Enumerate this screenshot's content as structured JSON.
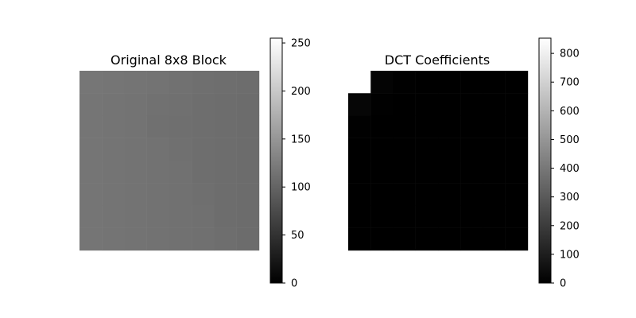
{
  "chart_data": [
    {
      "type": "heatmap",
      "title": "Original 8x8 Block",
      "xlabel": "",
      "ylabel": "",
      "axis": "off",
      "grid": false,
      "colormap": "gray",
      "vmin": 0,
      "vmax": 255,
      "values": [
        [
          118,
          117,
          116,
          115,
          113,
          111,
          110,
          109
        ],
        [
          117,
          116,
          115,
          113,
          112,
          110,
          109,
          108
        ],
        [
          117,
          116,
          115,
          112,
          111,
          110,
          109,
          108
        ],
        [
          117,
          116,
          115,
          114,
          112,
          110,
          109,
          108
        ],
        [
          117,
          116,
          115,
          114,
          113,
          110,
          109,
          108
        ],
        [
          117,
          116,
          115,
          114,
          113,
          111,
          109,
          108
        ],
        [
          117,
          116,
          115,
          114,
          113,
          112,
          109,
          108
        ],
        [
          117,
          116,
          115,
          114,
          113,
          112,
          110,
          108
        ]
      ],
      "colorbar": {
        "ticks": [
          "0",
          "50",
          "100",
          "150",
          "200",
          "250"
        ]
      }
    },
    {
      "type": "heatmap",
      "title": "DCT Coefficients",
      "xlabel": "",
      "ylabel": "",
      "axis": "off",
      "grid": false,
      "colormap": "gray",
      "vmin": 0,
      "vmax": 853,
      "values": [
        [
          853,
          12,
          2,
          1,
          1,
          0,
          0,
          0
        ],
        [
          20,
          4,
          1,
          0,
          0,
          0,
          0,
          0
        ],
        [
          3,
          1,
          0,
          0,
          0,
          0,
          0,
          0
        ],
        [
          1,
          0,
          0,
          0,
          0,
          0,
          0,
          0
        ],
        [
          1,
          0,
          0,
          0,
          0,
          0,
          0,
          0
        ],
        [
          0,
          0,
          0,
          0,
          0,
          0,
          0,
          0
        ],
        [
          0,
          0,
          0,
          0,
          0,
          0,
          0,
          0
        ],
        [
          0,
          0,
          0,
          0,
          0,
          0,
          0,
          0
        ]
      ],
      "colorbar": {
        "ticks": [
          "0",
          "100",
          "200",
          "300",
          "400",
          "500",
          "600",
          "700",
          "800"
        ]
      }
    }
  ]
}
